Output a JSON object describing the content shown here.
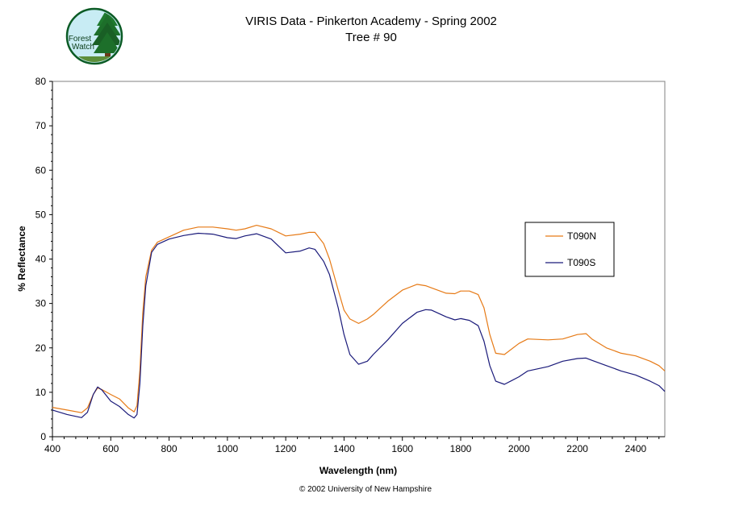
{
  "logo": {
    "text_line1": "Forest",
    "text_line2": "Watch"
  },
  "copyright": "© 2002 University of New Hampshire",
  "chart_data": {
    "type": "line",
    "title": "VIRIS Data - Pinkerton Academy - Spring 2002",
    "subtitle": "Tree # 90",
    "xlabel": "Wavelength (nm)",
    "ylabel": "% Reflectance",
    "xlim": [
      400,
      2500
    ],
    "ylim": [
      0,
      80
    ],
    "xticks": [
      400,
      600,
      800,
      1000,
      1200,
      1400,
      1600,
      1800,
      2000,
      2200,
      2400
    ],
    "yticks": [
      0,
      10,
      20,
      30,
      40,
      50,
      60,
      70,
      80
    ],
    "grid": false,
    "legend_position": "right",
    "series": [
      {
        "name": "T090N",
        "color": "#e67a16",
        "x": [
          400,
          450,
          500,
          520,
          540,
          555,
          570,
          600,
          630,
          660,
          680,
          690,
          700,
          710,
          720,
          740,
          760,
          800,
          850,
          900,
          950,
          1000,
          1030,
          1060,
          1100,
          1150,
          1200,
          1250,
          1280,
          1300,
          1330,
          1350,
          1380,
          1400,
          1420,
          1450,
          1480,
          1500,
          1550,
          1600,
          1650,
          1680,
          1700,
          1750,
          1780,
          1800,
          1830,
          1860,
          1880,
          1900,
          1920,
          1950,
          2000,
          2030,
          2100,
          2150,
          2200,
          2230,
          2250,
          2300,
          2350,
          2400,
          2450,
          2480,
          2500
        ],
        "y": [
          6.6,
          6.0,
          5.4,
          6.5,
          9.5,
          11.0,
          10.6,
          9.5,
          8.5,
          6.5,
          5.6,
          7.0,
          15.0,
          28.0,
          36.0,
          42.0,
          43.8,
          45.0,
          46.5,
          47.2,
          47.2,
          46.8,
          46.5,
          46.8,
          47.6,
          46.8,
          45.2,
          45.6,
          46.0,
          46.0,
          43.5,
          40.0,
          33.0,
          28.5,
          26.5,
          25.5,
          26.5,
          27.5,
          30.5,
          33.0,
          34.3,
          34.0,
          33.5,
          32.3,
          32.2,
          32.8,
          32.8,
          32.0,
          29.0,
          23.0,
          18.8,
          18.5,
          21.0,
          22.0,
          21.8,
          22.0,
          23.0,
          23.2,
          22.0,
          20.0,
          18.8,
          18.2,
          17.0,
          16.0,
          14.8
        ]
      },
      {
        "name": "T090S",
        "color": "#1a1a7a",
        "x": [
          400,
          450,
          500,
          520,
          540,
          555,
          570,
          600,
          630,
          660,
          680,
          690,
          700,
          710,
          720,
          740,
          760,
          800,
          850,
          900,
          950,
          1000,
          1030,
          1060,
          1100,
          1150,
          1200,
          1250,
          1280,
          1300,
          1330,
          1350,
          1380,
          1400,
          1420,
          1450,
          1480,
          1500,
          1550,
          1600,
          1650,
          1680,
          1700,
          1750,
          1780,
          1800,
          1830,
          1860,
          1880,
          1900,
          1920,
          1950,
          2000,
          2030,
          2100,
          2150,
          2200,
          2230,
          2250,
          2300,
          2350,
          2400,
          2450,
          2480,
          2500
        ],
        "y": [
          6.0,
          5.0,
          4.3,
          5.5,
          9.5,
          11.2,
          10.5,
          8.0,
          6.8,
          5.0,
          4.2,
          5.0,
          12.0,
          25.0,
          34.0,
          41.5,
          43.3,
          44.5,
          45.3,
          45.8,
          45.6,
          44.8,
          44.6,
          45.2,
          45.7,
          44.5,
          41.4,
          41.8,
          42.5,
          42.2,
          39.5,
          36.5,
          29.0,
          23.0,
          18.5,
          16.3,
          17.0,
          18.5,
          21.8,
          25.5,
          28.0,
          28.6,
          28.5,
          27.0,
          26.3,
          26.6,
          26.2,
          25.0,
          21.5,
          16.0,
          12.5,
          11.8,
          13.5,
          14.8,
          15.8,
          17.0,
          17.6,
          17.7,
          17.2,
          16.0,
          14.8,
          13.9,
          12.5,
          11.5,
          10.2
        ]
      }
    ]
  }
}
